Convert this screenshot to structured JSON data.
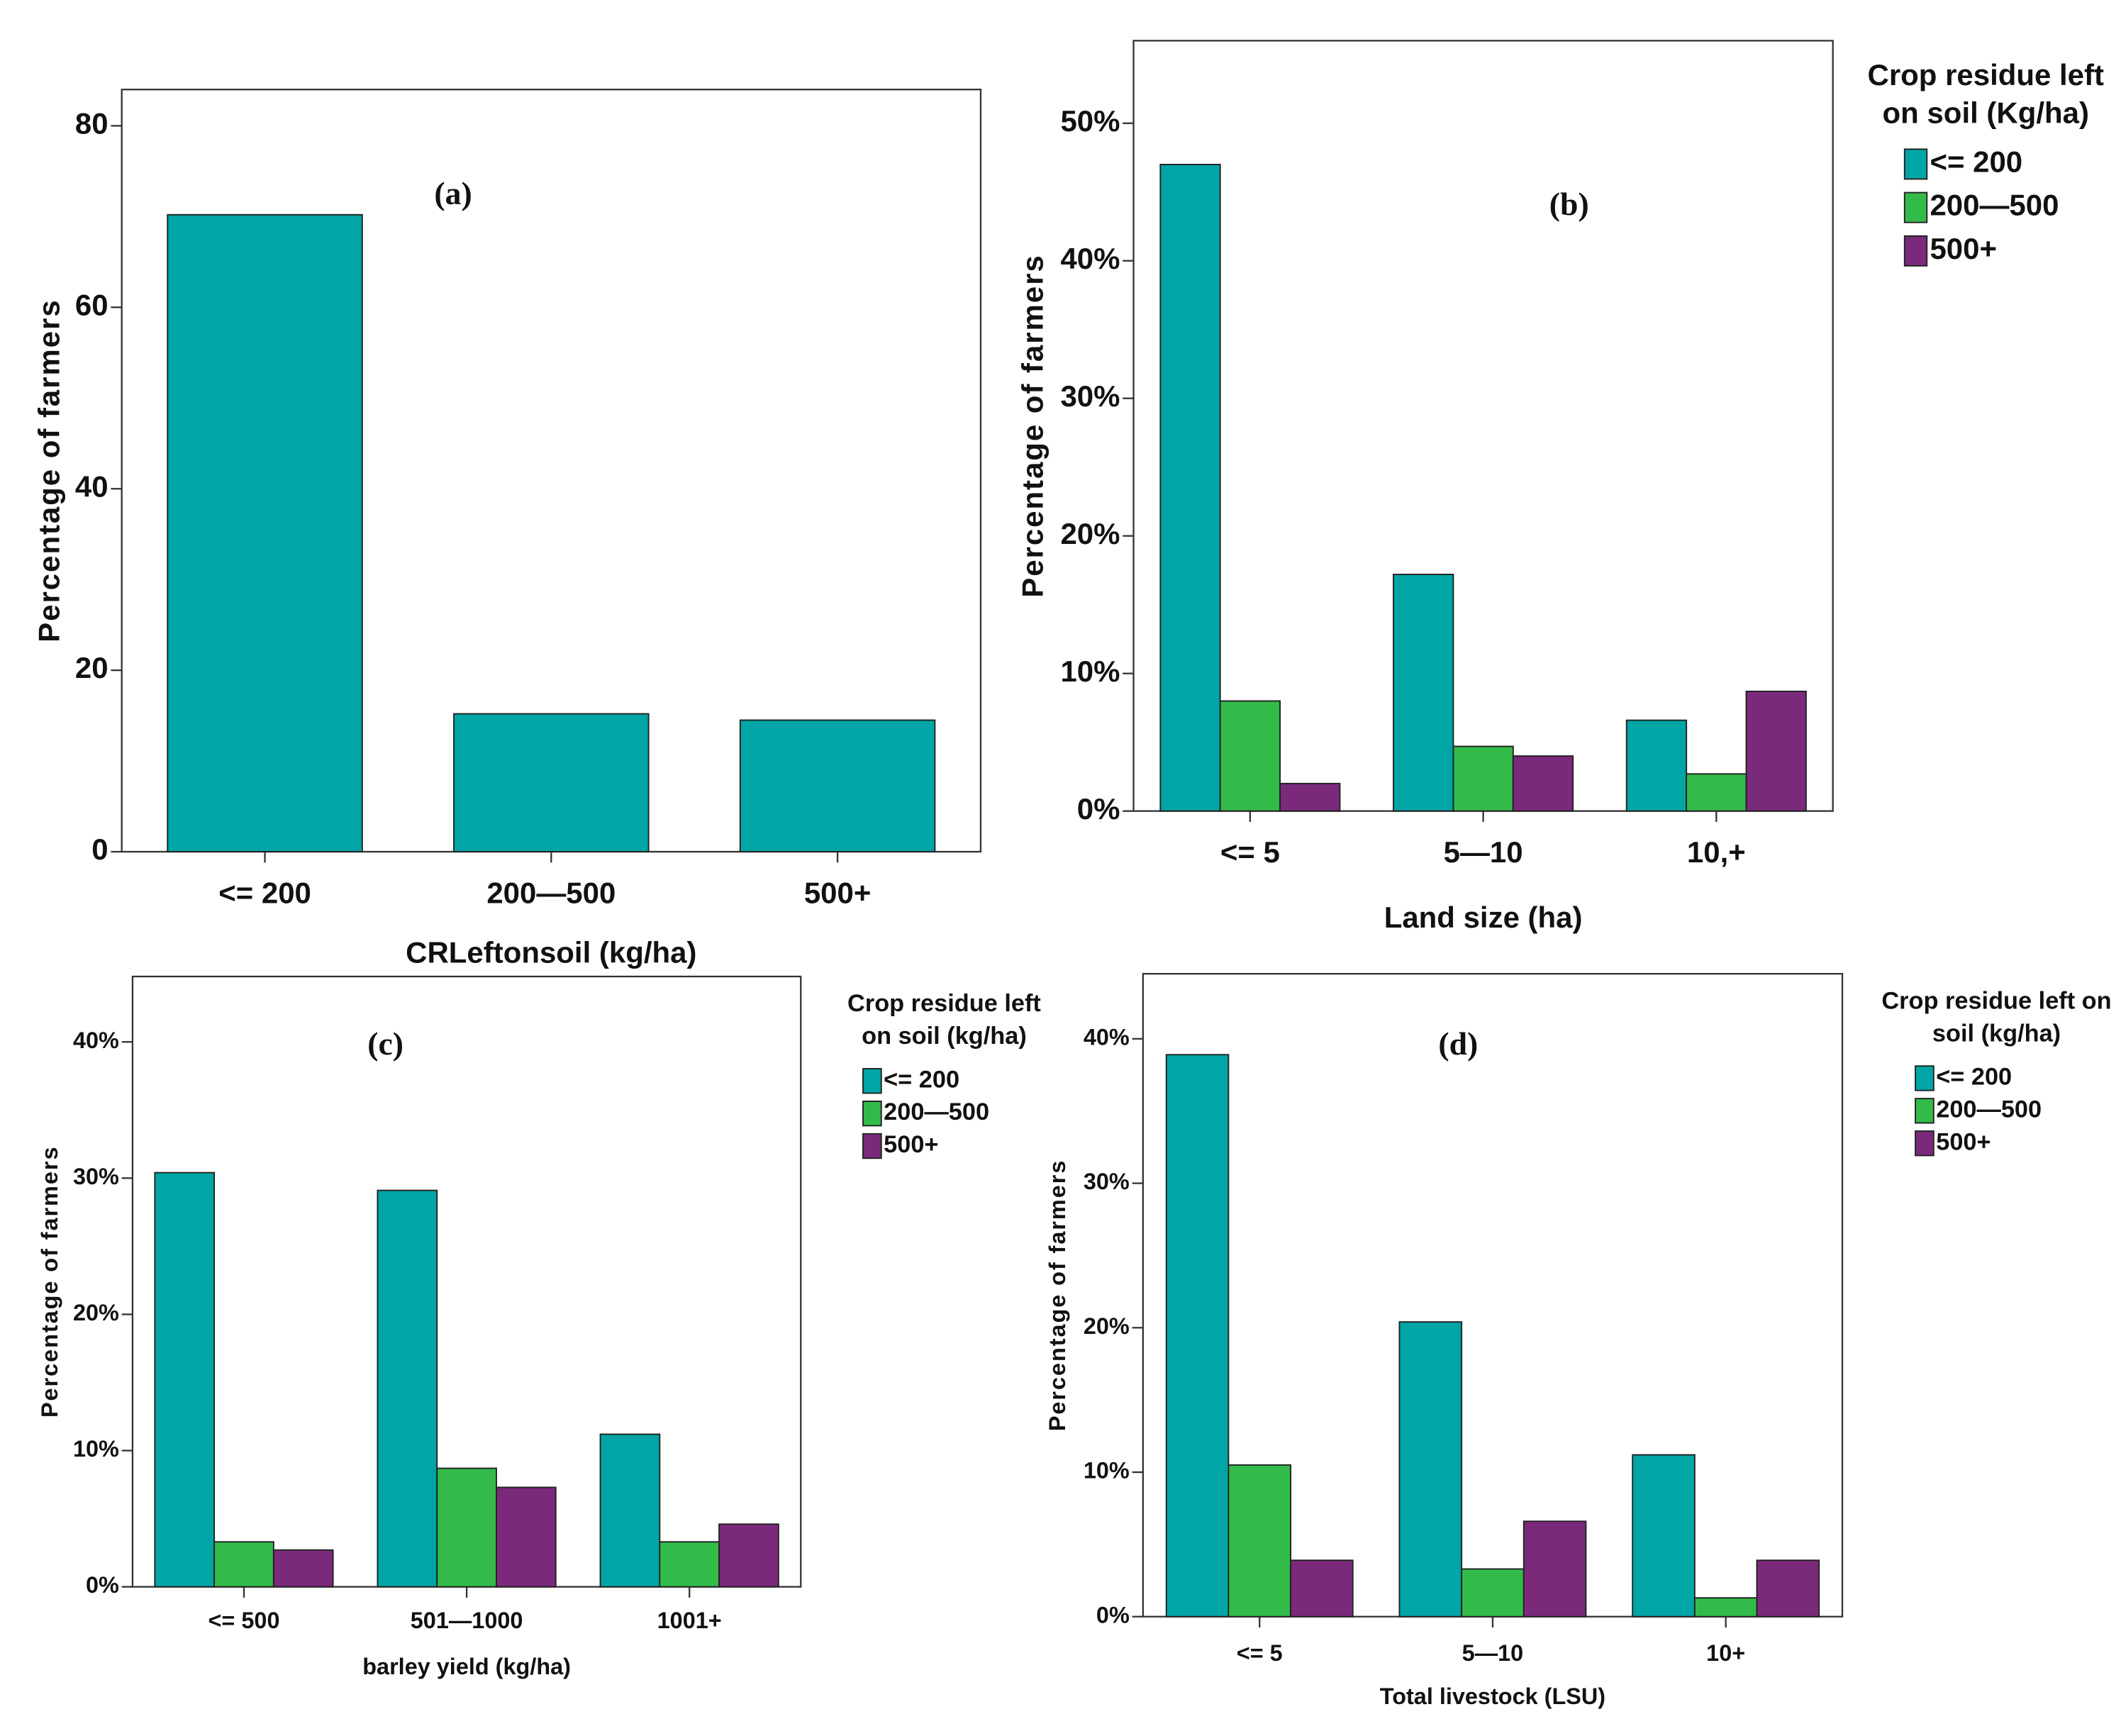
{
  "chart_data": [
    {
      "type": "bar",
      "annotation": "(a)",
      "ylabel": "Percentage of farmers",
      "xlabel": "CRLeftonsoil (kg/ha)",
      "categories": [
        "<= 200",
        "200—500",
        "500+"
      ],
      "values": [
        70.2,
        15.2,
        14.5
      ],
      "color": "#00a6a6",
      "ylim": [
        0,
        84
      ],
      "yticks": [
        0,
        20,
        40,
        60,
        80
      ]
    },
    {
      "type": "grouped_bar",
      "annotation": "(b)",
      "ylabel": "Percentage of farmers",
      "xlabel": "Land size (ha)",
      "legend_title": [
        "Crop residue left",
        "on soil (Kg/ha)"
      ],
      "categories": [
        "<= 5",
        "5—10",
        "10,+"
      ],
      "series": [
        {
          "name": "<= 200",
          "color": "#00a6a6",
          "values": [
            47.0,
            17.2,
            6.6
          ]
        },
        {
          "name": "200—500",
          "color": "#33bb4a",
          "values": [
            8.0,
            4.7,
            2.7
          ]
        },
        {
          "name": "500+",
          "color": "#7b2a7b",
          "values": [
            2.0,
            4.0,
            8.7
          ]
        }
      ],
      "ylim": [
        0,
        56
      ],
      "yticks": [
        {
          "value": 0,
          "label": "0%"
        },
        {
          "value": 10,
          "label": "10%"
        },
        {
          "value": 20,
          "label": "20%"
        },
        {
          "value": 30,
          "label": "30%"
        },
        {
          "value": 40,
          "label": "40%"
        },
        {
          "value": 50,
          "label": "50%"
        }
      ]
    },
    {
      "type": "grouped_bar",
      "annotation": "(c)",
      "ylabel": "Percentage of farmers",
      "xlabel": "barley yield (kg/ha)",
      "legend_title": [
        "Crop residue left",
        "on soil (kg/ha)"
      ],
      "categories": [
        "<= 500",
        "501—1000",
        "1001+"
      ],
      "series": [
        {
          "name": "<= 200",
          "color": "#00a6a6",
          "values": [
            30.4,
            29.1,
            11.2
          ]
        },
        {
          "name": "200—500",
          "color": "#33bb4a",
          "values": [
            3.3,
            8.7,
            3.3
          ]
        },
        {
          "name": "500+",
          "color": "#7b2a7b",
          "values": [
            2.7,
            7.3,
            4.6
          ]
        }
      ],
      "ylim": [
        0,
        44.8
      ],
      "yticks": [
        {
          "value": 0,
          "label": "0%"
        },
        {
          "value": 10,
          "label": "10%"
        },
        {
          "value": 20,
          "label": "20%"
        },
        {
          "value": 30,
          "label": "30%"
        },
        {
          "value": 40,
          "label": "40%"
        }
      ]
    },
    {
      "type": "grouped_bar",
      "annotation": "(d)",
      "ylabel": "Percentage of farmers",
      "xlabel": "Total livestock (LSU)",
      "legend_title": [
        "Crop residue left on",
        "soil (kg/ha)"
      ],
      "categories": [
        "<= 5",
        "5—10",
        "10+"
      ],
      "series": [
        {
          "name": "<= 200",
          "color": "#00a6a6",
          "values": [
            38.9,
            20.4,
            11.2
          ]
        },
        {
          "name": "200—500",
          "color": "#33bb4a",
          "values": [
            10.5,
            3.3,
            1.3
          ]
        },
        {
          "name": "500+",
          "color": "#7b2a7b",
          "values": [
            3.9,
            6.6,
            3.9
          ]
        }
      ],
      "ylim": [
        0,
        44.5
      ],
      "yticks": [
        {
          "value": 0,
          "label": "0%"
        },
        {
          "value": 10,
          "label": "10%"
        },
        {
          "value": 20,
          "label": "20%"
        },
        {
          "value": 30,
          "label": "30%"
        },
        {
          "value": 40,
          "label": "40%"
        }
      ]
    }
  ]
}
